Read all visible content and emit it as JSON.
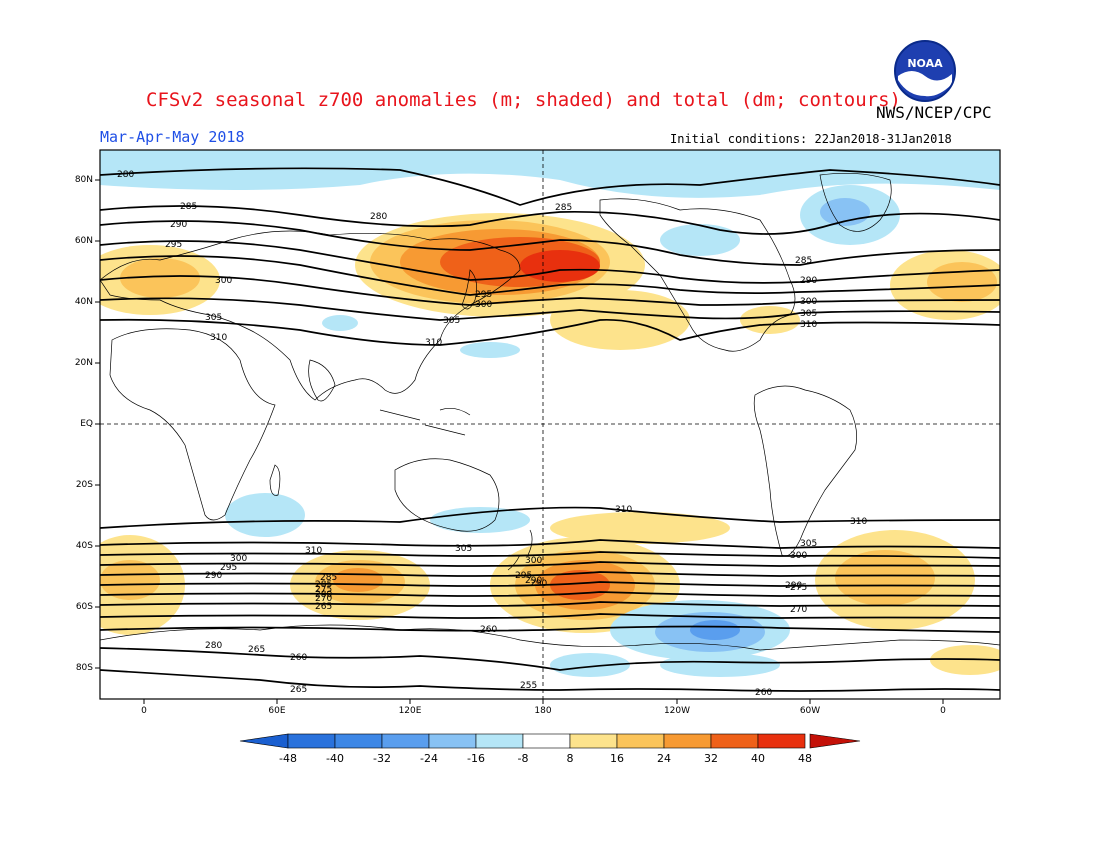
{
  "header": {
    "title": "CFSv2 seasonal z700 anomalies (m; shaded) and total (dm; contours)",
    "agency": "NWS/NCEP/CPC",
    "period": "Mar-Apr-May 2018",
    "initial_conditions": "Initial conditions: 22Jan2018-31Jan2018",
    "logo_text": "NOAA"
  },
  "axes": {
    "lat_labels": [
      "80N",
      "60N",
      "40N",
      "20N",
      "EQ",
      "20S",
      "40S",
      "60S",
      "80S"
    ],
    "lon_labels": [
      "0",
      "60E",
      "120E",
      "180",
      "120W",
      "60W",
      "0"
    ]
  },
  "colorbar": {
    "labels": [
      "-48",
      "-40",
      "-32",
      "-24",
      "-16",
      "-8",
      "8",
      "16",
      "24",
      "32",
      "40",
      "48"
    ],
    "colors": [
      "#1a5fd0",
      "#2a72dc",
      "#3d87e6",
      "#5a9eee",
      "#88c2f4",
      "#b5e6f7",
      "#ffffff",
      "#fde38c",
      "#fbc45a",
      "#f79a33",
      "#ef6119",
      "#e8300e",
      "#c41108"
    ]
  },
  "contour_labels": [
    "280",
    "285",
    "290",
    "295",
    "300",
    "305",
    "310",
    "310",
    "310",
    "300",
    "290",
    "285",
    "280",
    "295",
    "305",
    "310",
    "290",
    "300",
    "310",
    "305",
    "300",
    "295",
    "290",
    "285",
    "280",
    "275",
    "270",
    "265",
    "260",
    "255",
    "265",
    "260",
    "280",
    "265",
    "275",
    "270",
    "285",
    "290",
    "300",
    "305",
    "310",
    "290",
    "295",
    "300",
    "305",
    "260",
    "285"
  ]
}
